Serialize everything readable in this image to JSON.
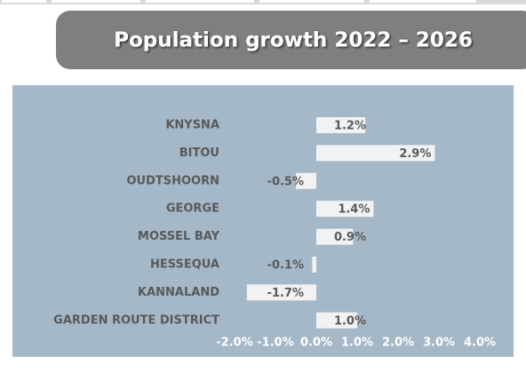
{
  "chart_data": {
    "type": "barh",
    "title": "Population growth 2022 – 2026",
    "categories": [
      "KNYSNA",
      "BITOU",
      "OUDTSHOORN",
      "GEORGE",
      "MOSSEL BAY",
      "HESSEQUA",
      "KANNALAND",
      "GARDEN ROUTE DISTRICT"
    ],
    "values": [
      1.2,
      2.9,
      -0.5,
      1.4,
      0.9,
      -0.1,
      -1.7,
      1.0
    ],
    "value_labels": [
      "1.2%",
      "2.9%",
      "-0.5%",
      "1.4%",
      "0.9%",
      "-0.1%",
      "-1.7%",
      "1.0%"
    ],
    "color": "#f2f2f2",
    "xlim": [
      -2,
      4
    ],
    "xticks": [
      {
        "value": -2,
        "label": "-2.0%"
      },
      {
        "value": -1,
        "label": "-1.0%"
      },
      {
        "value": 0,
        "label": "0.0%"
      },
      {
        "value": 1,
        "label": "1.0%"
      },
      {
        "value": 2,
        "label": "2.0%"
      },
      {
        "value": 3,
        "label": "3.0%"
      },
      {
        "value": 4,
        "label": "4.0%"
      }
    ],
    "grid": false
  }
}
